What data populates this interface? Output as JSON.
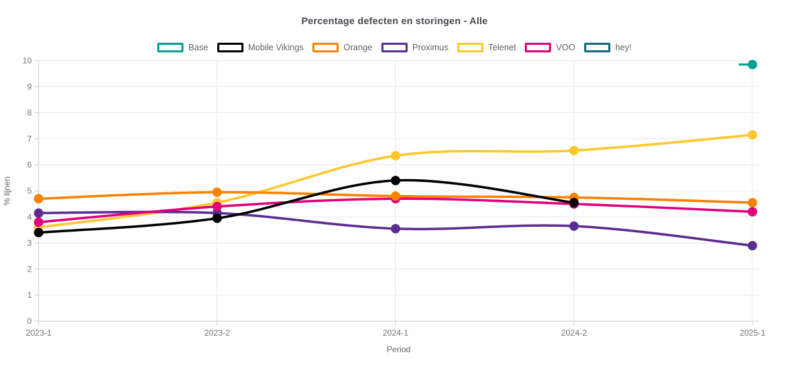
{
  "chart_data": {
    "type": "line",
    "title": "Percentage defecten en storingen - Alle",
    "xlabel": "Period",
    "ylabel": "% lijnen",
    "categories": [
      "2023-1",
      "2023-2",
      "2024-1",
      "2024-2",
      "2025-1"
    ],
    "ylim": [
      0,
      10
    ],
    "y_ticks": [
      0,
      1,
      2,
      3,
      4,
      5,
      6,
      7,
      8,
      9,
      10
    ],
    "grid": true,
    "legend_position": "top",
    "series": [
      {
        "name": "Base",
        "color": "#00A096",
        "values": [
          null,
          null,
          null,
          null,
          9.85
        ],
        "single_point_stub": true
      },
      {
        "name": "Mobile Vikings",
        "color": "#000000",
        "values": [
          3.4,
          3.95,
          5.4,
          4.55,
          null
        ]
      },
      {
        "name": "Orange",
        "color": "#F78200",
        "values": [
          4.7,
          4.95,
          4.8,
          4.75,
          4.55
        ]
      },
      {
        "name": "Proximus",
        "color": "#5C2D91",
        "values": [
          4.15,
          4.15,
          3.55,
          3.65,
          2.9
        ]
      },
      {
        "name": "Telenet",
        "color": "#FFC72C",
        "values": [
          3.6,
          4.55,
          6.35,
          6.55,
          7.15
        ]
      },
      {
        "name": "VOO",
        "color": "#E0007B",
        "values": [
          3.8,
          4.4,
          4.7,
          4.5,
          4.2
        ]
      },
      {
        "name": "hey!",
        "color": "#15697B",
        "values": [
          null,
          null,
          null,
          null,
          null
        ]
      }
    ],
    "style": {
      "grid_color": "#e8e8e8",
      "axis_color": "#cccccc",
      "tick_label_color": "#757575",
      "axis_title_color": "#666666"
    }
  }
}
